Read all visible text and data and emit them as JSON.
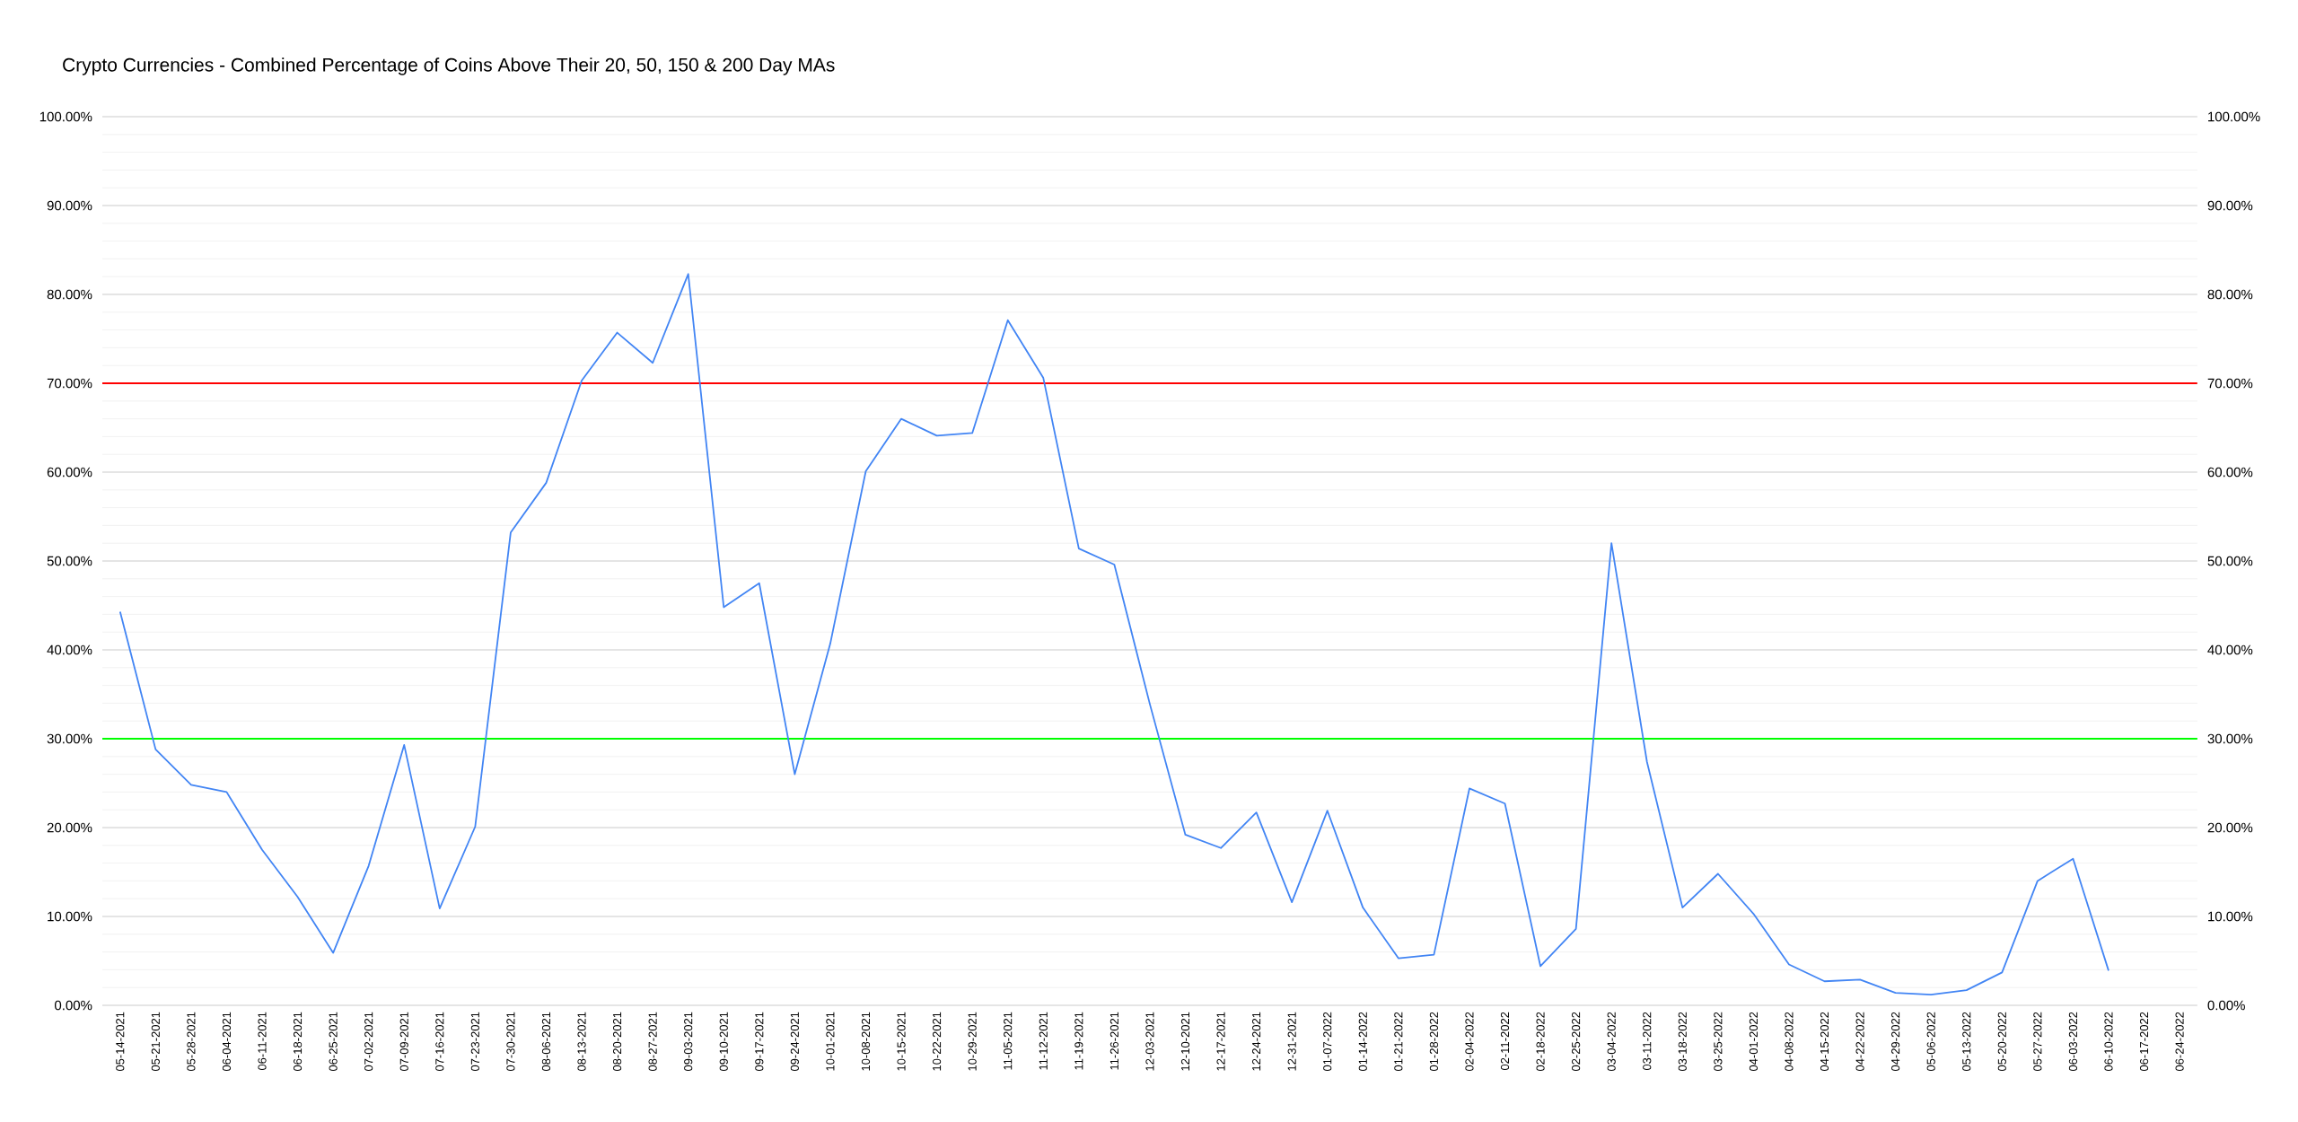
{
  "chart_data": {
    "type": "line",
    "title": "Crypto Currencies - Combined Percentage of Coins Above Their 20, 50, 150 & 200 Day MAs",
    "categories": [
      "05-14-2021",
      "05-21-2021",
      "05-28-2021",
      "06-04-2021",
      "06-11-2021",
      "06-18-2021",
      "06-25-2021",
      "07-02-2021",
      "07-09-2021",
      "07-16-2021",
      "07-23-2021",
      "07-30-2021",
      "08-06-2021",
      "08-13-2021",
      "08-20-2021",
      "08-27-2021",
      "09-03-2021",
      "09-10-2021",
      "09-17-2021",
      "09-24-2021",
      "10-01-2021",
      "10-08-2021",
      "10-15-2021",
      "10-22-2021",
      "10-29-2021",
      "11-05-2021",
      "11-12-2021",
      "11-19-2021",
      "11-26-2021",
      "12-03-2021",
      "12-10-2021",
      "12-17-2021",
      "12-24-2021",
      "12-31-2021",
      "01-07-2022",
      "01-14-2022",
      "01-21-2022",
      "01-28-2022",
      "02-04-2022",
      "02-11-2022",
      "02-18-2022",
      "02-25-2022",
      "03-04-2022",
      "03-11-2022",
      "03-18-2022",
      "03-25-2022",
      "04-01-2022",
      "04-08-2022",
      "04-15-2022",
      "04-22-2022",
      "04-29-2022",
      "05-06-2022",
      "05-13-2022",
      "05-20-2022",
      "05-27-2022",
      "06-03-2022",
      "06-10-2022",
      "06-17-2022",
      "06-24-2022"
    ],
    "series": [
      {
        "color": "#4285f4",
        "values": [
          44.3,
          28.8,
          24.8,
          24.0,
          17.5,
          12.2,
          5.9,
          15.7,
          29.3,
          10.9,
          20.1,
          53.2,
          58.8,
          70.3,
          75.7,
          72.3,
          82.3,
          44.8,
          47.5,
          26.0,
          40.7,
          60.1,
          66.0,
          64.1,
          64.4,
          77.1,
          70.6,
          51.4,
          49.6,
          33.9,
          19.2,
          17.7,
          21.7,
          11.6,
          21.9,
          11.0,
          5.3,
          5.7,
          24.4,
          22.7,
          4.4,
          8.6,
          52.0,
          27.4,
          11.0,
          14.8,
          10.3,
          4.6,
          2.7,
          2.9,
          1.4,
          1.2,
          1.7,
          3.7,
          14.0,
          16.5,
          3.9,
          null,
          null
        ]
      }
    ],
    "ylim": [
      0,
      100
    ],
    "yticks": [
      {
        "value": 0,
        "label": "0.00%"
      },
      {
        "value": 2,
        "label": null
      },
      {
        "value": 4,
        "label": null
      },
      {
        "value": 6,
        "label": null
      },
      {
        "value": 8,
        "label": null
      },
      {
        "value": 10,
        "label": "10.00%"
      },
      {
        "value": 12,
        "label": null
      },
      {
        "value": 14,
        "label": null
      },
      {
        "value": 16,
        "label": null
      },
      {
        "value": 18,
        "label": null
      },
      {
        "value": 20,
        "label": "20.00%"
      },
      {
        "value": 22,
        "label": null
      },
      {
        "value": 24,
        "label": null
      },
      {
        "value": 26,
        "label": null
      },
      {
        "value": 28,
        "label": null
      },
      {
        "value": 30,
        "label": "30.00%"
      },
      {
        "value": 32,
        "label": null
      },
      {
        "value": 34,
        "label": null
      },
      {
        "value": 36,
        "label": null
      },
      {
        "value": 38,
        "label": null
      },
      {
        "value": 40,
        "label": "40.00%"
      },
      {
        "value": 42,
        "label": null
      },
      {
        "value": 44,
        "label": null
      },
      {
        "value": 46,
        "label": null
      },
      {
        "value": 48,
        "label": null
      },
      {
        "value": 50,
        "label": "50.00%"
      },
      {
        "value": 52,
        "label": null
      },
      {
        "value": 54,
        "label": null
      },
      {
        "value": 56,
        "label": null
      },
      {
        "value": 58,
        "label": null
      },
      {
        "value": 60,
        "label": "60.00%"
      },
      {
        "value": 62,
        "label": null
      },
      {
        "value": 64,
        "label": null
      },
      {
        "value": 66,
        "label": null
      },
      {
        "value": 68,
        "label": null
      },
      {
        "value": 70,
        "label": "70.00%"
      },
      {
        "value": 72,
        "label": null
      },
      {
        "value": 74,
        "label": null
      },
      {
        "value": 76,
        "label": null
      },
      {
        "value": 78,
        "label": null
      },
      {
        "value": 80,
        "label": "80.00%"
      },
      {
        "value": 82,
        "label": null
      },
      {
        "value": 84,
        "label": null
      },
      {
        "value": 86,
        "label": null
      },
      {
        "value": 88,
        "label": null
      },
      {
        "value": 90,
        "label": "90.00%"
      },
      {
        "value": 92,
        "label": null
      },
      {
        "value": 94,
        "label": null
      },
      {
        "value": 96,
        "label": null
      },
      {
        "value": 98,
        "label": null
      },
      {
        "value": 100,
        "label": "100.00%"
      }
    ],
    "y2lim": [
      0,
      100
    ],
    "y2ticks": [
      {
        "value": 0,
        "label": "0.00%"
      },
      {
        "value": 10,
        "label": "10.00%"
      },
      {
        "value": 20,
        "label": "20.00%"
      },
      {
        "value": 30,
        "label": "30.00%"
      },
      {
        "value": 40,
        "label": "40.00%"
      },
      {
        "value": 50,
        "label": "50.00%"
      },
      {
        "value": 60,
        "label": "60.00%"
      },
      {
        "value": 70,
        "label": "70.00%"
      },
      {
        "value": 80,
        "label": "80.00%"
      },
      {
        "value": 90,
        "label": "90.00%"
      },
      {
        "value": 100,
        "label": "100.00%"
      }
    ],
    "ref_lines": [
      {
        "axis": "y",
        "value": 70,
        "color": "#ff0000"
      },
      {
        "axis": "y",
        "value": 30,
        "color": "#00ff00"
      }
    ],
    "grid": "y"
  }
}
